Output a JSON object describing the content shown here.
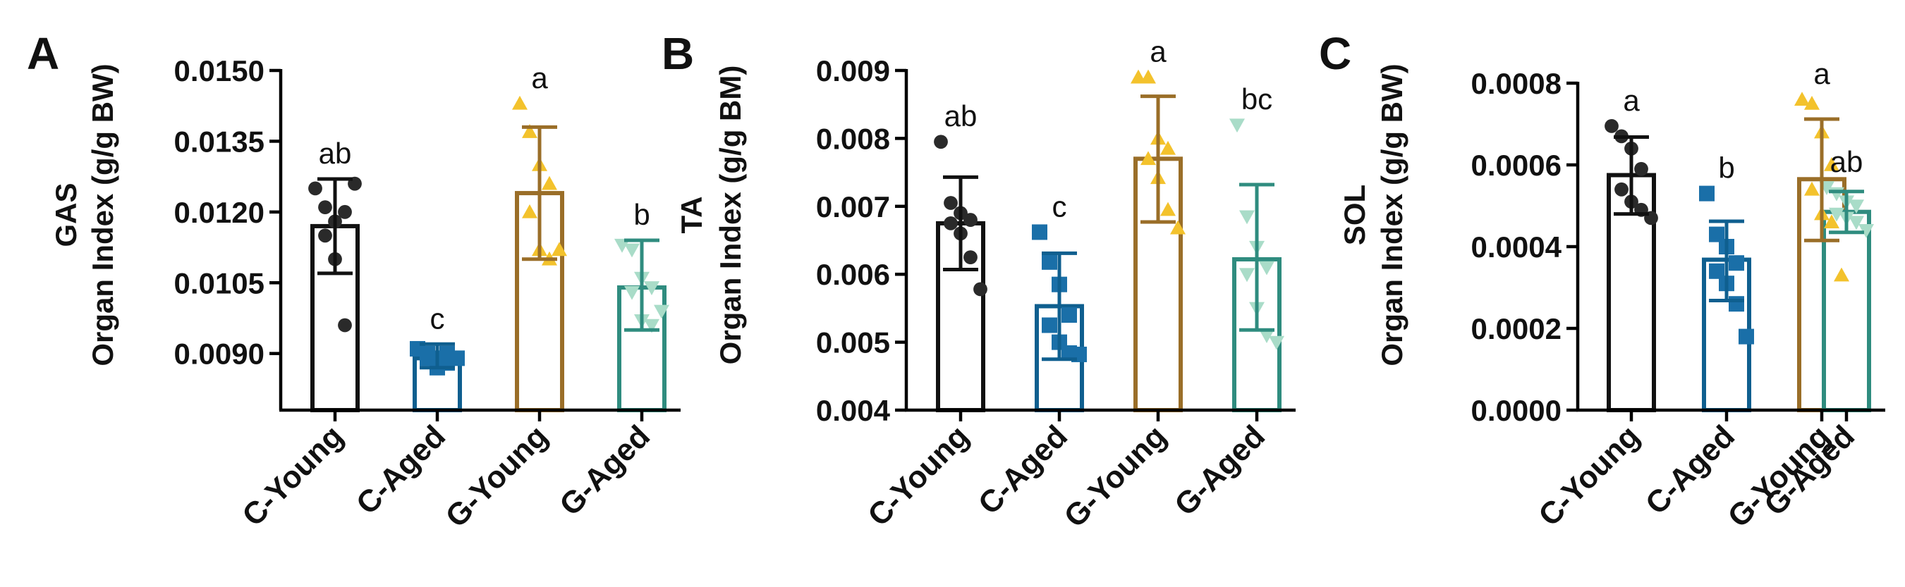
{
  "colors": {
    "C-Young": "#111111",
    "C-Aged": "#0f5f8f",
    "G-Young": "#9a6e28",
    "G-Aged": "#2f8c7f",
    "points": {
      "C-Young": "#2a2a2a",
      "C-Aged": "#1a6fa8",
      "G-Young": "#f3c22c",
      "G-Aged": "#a9dcc8"
    }
  },
  "chart_data": [
    {
      "type": "bar",
      "panel_label": "A",
      "ylabel_line1": "GAS",
      "ylabel_line2": "Organ Index (g/g BW)",
      "categories": [
        "C-Young",
        "C-Aged",
        "G-Young",
        "G-Aged"
      ],
      "values": [
        0.0117,
        0.0089,
        0.0124,
        0.0104
      ],
      "error_low": [
        0.0107,
        0.0087,
        0.011,
        0.0095
      ],
      "error_high": [
        0.0127,
        0.0092,
        0.0138,
        0.0114
      ],
      "significance": [
        "ab",
        "c",
        "a",
        "b"
      ],
      "points": [
        [
          0.0125,
          0.0121,
          0.0118,
          0.012,
          0.0115,
          0.011,
          0.0096,
          0.0126
        ],
        [
          0.0091,
          0.009,
          0.0089,
          0.0088,
          0.0089,
          0.0087,
          0.009,
          0.0089
        ],
        [
          0.0143,
          0.0137,
          0.013,
          0.0126,
          0.012,
          0.0112,
          0.011,
          0.0112
        ],
        [
          0.0113,
          0.0112,
          0.0106,
          0.0104,
          0.0103,
          0.0097,
          0.0096,
          0.0099
        ]
      ],
      "ylim": [
        0.0078,
        0.015
      ],
      "yticks": [
        0.009,
        0.0105,
        0.012,
        0.0135,
        0.015
      ],
      "ytick_labels": [
        "0.0090",
        "0.0105",
        "0.0120",
        "0.0135",
        "0.0150"
      ]
    },
    {
      "type": "bar",
      "panel_label": "B",
      "ylabel_line1": "TA",
      "ylabel_line2": "Organ Index (g/g BM)",
      "categories": [
        "C-Young",
        "C-Aged",
        "G-Young",
        "G-Aged"
      ],
      "values": [
        0.00675,
        0.00553,
        0.0077,
        0.00622
      ],
      "error_low": [
        0.00607,
        0.00475,
        0.00677,
        0.00518
      ],
      "error_high": [
        0.00743,
        0.00631,
        0.00862,
        0.00732
      ],
      "significance": [
        "ab",
        "c",
        "a",
        "bc"
      ],
      "points": [
        [
          0.00795,
          0.00705,
          0.0069,
          0.0068,
          0.00675,
          0.0066,
          0.00625,
          0.00578
        ],
        [
          0.00662,
          0.00618,
          0.00585,
          0.0054,
          0.00525,
          0.005,
          0.00484,
          0.00482
        ],
        [
          0.0089,
          0.0089,
          0.008,
          0.00785,
          0.0077,
          0.00742,
          0.00695,
          0.00668
        ],
        [
          0.0082,
          0.00685,
          0.0064,
          0.0061,
          0.006,
          0.0055,
          0.0051,
          0.005
        ]
      ],
      "ylim": [
        0.004,
        0.009
      ],
      "yticks": [
        0.004,
        0.005,
        0.006,
        0.007,
        0.008,
        0.009
      ],
      "ytick_labels": [
        "0.004",
        "0.005",
        "0.006",
        "0.007",
        "0.008",
        "0.009"
      ]
    },
    {
      "type": "bar",
      "panel_label": "C",
      "ylabel_line1": "SOL",
      "ylabel_line2": "Organ Index (g/g BW)",
      "categories": [
        "C-Young",
        "C-Aged",
        "G-Young",
        "G-Aged"
      ],
      "values": [
        0.000575,
        0.000368,
        0.000565,
        0.000485
      ],
      "error_low": [
        0.00048,
        0.000268,
        0.000415,
        0.000435
      ],
      "error_high": [
        0.000668,
        0.000462,
        0.000712,
        0.000535
      ],
      "significance": [
        "a",
        "b",
        "a",
        "ab"
      ],
      "points": [
        [
          0.000695,
          0.00067,
          0.00064,
          0.00059,
          0.00054,
          0.00051,
          0.00049,
          0.00047
        ],
        [
          0.00053,
          0.00043,
          0.0004,
          0.00036,
          0.00034,
          0.00031,
          0.00026,
          0.00018
        ],
        [
          0.00076,
          0.00075,
          0.00068,
          0.0006,
          0.00054,
          0.00048,
          0.00046,
          0.00033
        ],
        [
          0.000545,
          0.00053,
          0.00051,
          0.0005,
          0.00048,
          0.00047,
          0.00046,
          0.00044
        ]
      ],
      "ylim": [
        0.0,
        0.0008
      ],
      "yticks": [
        0.0,
        0.0002,
        0.0004,
        0.0006,
        0.0008
      ],
      "ytick_labels": [
        "0.0000",
        "0.0002",
        "0.0004",
        "0.0006",
        "0.0008"
      ]
    }
  ]
}
